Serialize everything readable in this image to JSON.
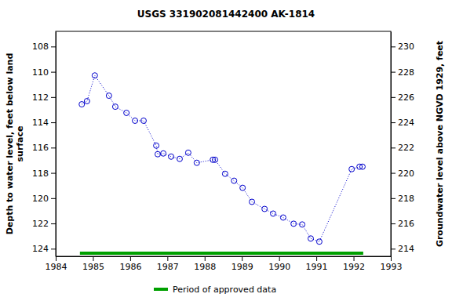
{
  "chart_data": {
    "type": "line",
    "title": "USGS 331902081442400 AK-1814",
    "y_label": "Depth to water level, feet below land\nsurface",
    "y2_label": "Groundwater level above NGVD 1929, feet",
    "x": [
      1984.7,
      1984.84,
      1985.05,
      1985.43,
      1985.6,
      1985.9,
      1986.13,
      1986.36,
      1986.7,
      1986.74,
      1986.89,
      1987.1,
      1987.33,
      1987.56,
      1987.79,
      1988.22,
      1988.28,
      1988.55,
      1988.79,
      1989.02,
      1989.27,
      1989.61,
      1989.84,
      1990.11,
      1990.39,
      1990.62,
      1990.85,
      1991.08,
      1991.95,
      1992.16,
      1992.24
    ],
    "series": [
      {
        "color": "#0000cc",
        "marker": "circle",
        "line_style": "dotted",
        "values": [
          112.57,
          112.32,
          110.29,
          111.89,
          112.76,
          113.25,
          113.87,
          113.87,
          115.84,
          116.52,
          116.46,
          116.71,
          116.89,
          116.4,
          117.2,
          116.96,
          116.96,
          118.07,
          118.62,
          119.18,
          120.29,
          120.85,
          121.22,
          121.53,
          122.02,
          122.08,
          123.19,
          123.44,
          117.7,
          117.51,
          117.51
        ]
      }
    ],
    "approved_periods": [
      {
        "name": "Period of approved data",
        "color": "#00a000",
        "x": [
          1984.65,
          1992.26
        ]
      }
    ],
    "xlim": [
      1984,
      1993
    ],
    "xticks": [
      1984,
      1985,
      1986,
      1987,
      1988,
      1989,
      1990,
      1991,
      1992,
      1993
    ],
    "ylim": [
      106.8,
      124.6
    ],
    "yticks": [
      108,
      110,
      112,
      114,
      116,
      118,
      120,
      122,
      124
    ],
    "y2lim": [
      231.2,
      213.4
    ],
    "y2ticks": [
      230,
      228,
      226,
      224,
      222,
      220,
      218,
      216,
      214
    ],
    "grid": false,
    "legend": "bottom"
  }
}
